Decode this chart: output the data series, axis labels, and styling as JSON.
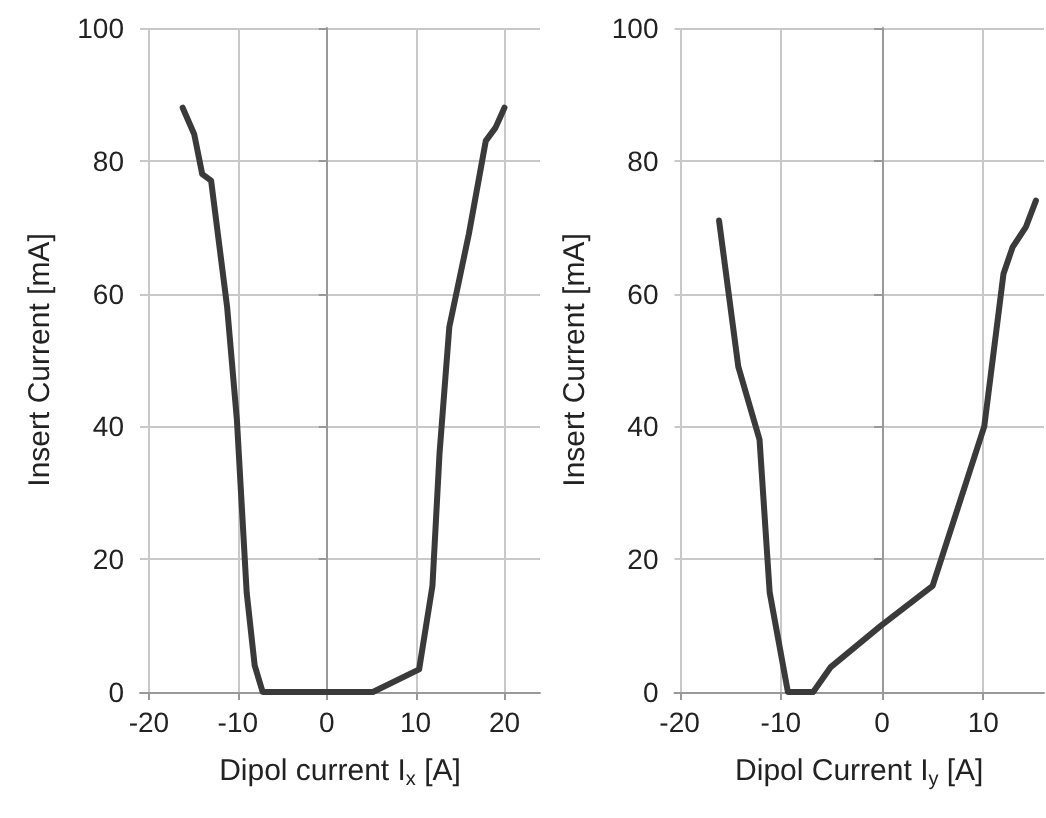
{
  "chart_data": [
    {
      "type": "line",
      "xlabel": "Dipol current I$_{x}$ [A]",
      "ylabel": "Insert Current [mA]",
      "xlim": [
        -21,
        24
      ],
      "xticks": [
        -20,
        -10,
        0,
        10,
        20
      ],
      "ylim": [
        0,
        100
      ],
      "yticks": [
        0,
        20,
        40,
        60,
        80,
        100
      ],
      "grid": true,
      "marker": "none",
      "line_style": "solid",
      "series": [
        {
          "color": "#3a3a3a",
          "x": [
            -16.2,
            -14.9,
            -14.0,
            -13.0,
            -11.2,
            -10.1,
            -9.0,
            -8.1,
            -7.2,
            5.2,
            10.4,
            11.9,
            12.7,
            13.8,
            16.0,
            17.9,
            19.0,
            20.0
          ],
          "values": [
            88,
            84,
            78,
            77,
            58,
            41,
            15,
            4,
            0,
            0,
            3.4,
            16,
            36,
            55,
            69,
            83,
            85,
            88
          ]
        }
      ]
    },
    {
      "type": "line",
      "xlabel": "Dipol Current I$_{y}$ [A]",
      "ylabel": "Insert Current [mA]",
      "xlim": [
        -20.5,
        16
      ],
      "xticks": [
        -20,
        -10,
        0,
        10
      ],
      "ylim": [
        0,
        100
      ],
      "yticks": [
        0,
        20,
        40,
        60,
        80,
        100
      ],
      "grid": true,
      "marker": "none",
      "line_style": "solid",
      "series": [
        {
          "color": "#3a3a3a",
          "x": [
            -16.1,
            -14.2,
            -12.1,
            -11.1,
            -9.3,
            -6.8,
            -5.1,
            -0.1,
            5.0,
            10.1,
            12.0,
            12.9,
            14.2,
            15.2
          ],
          "values": [
            71,
            49,
            38,
            15,
            0,
            0,
            3.7,
            10,
            16,
            40,
            63,
            67,
            70,
            74
          ]
        }
      ]
    }
  ]
}
